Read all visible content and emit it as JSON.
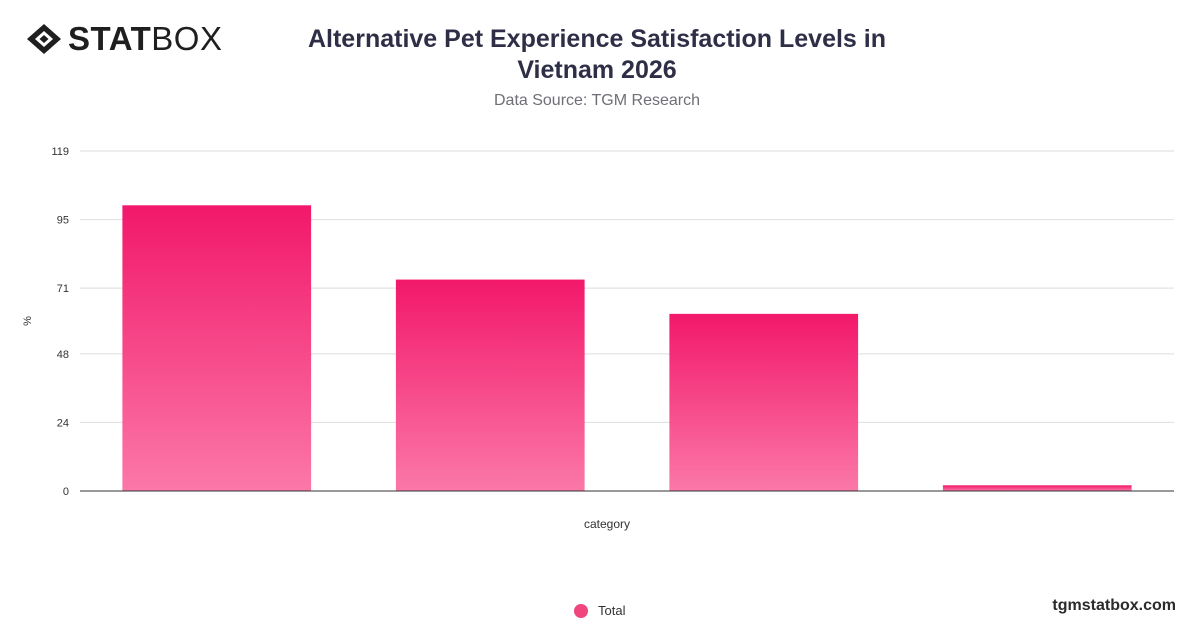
{
  "brand": {
    "bold": "STAT",
    "light": "BOX"
  },
  "header": {
    "title": "Alternative Pet Experience Satisfaction Levels in Vietnam 2026",
    "subtitle": "Data Source: TGM Research"
  },
  "footer": {
    "site": "tgmstatbox.com"
  },
  "colors": {
    "bar_top": "#f2186a",
    "bar_bottom": "#fb78a8",
    "grid": "#dedede",
    "axis": "#333333"
  },
  "chart_data": {
    "type": "bar",
    "categories": [
      "",
      "",
      "",
      ""
    ],
    "series": [
      {
        "name": "Total",
        "values": [
          100,
          74,
          62,
          2
        ]
      }
    ],
    "xlabel": "category",
    "ylabel": "%",
    "ylim": [
      0,
      119
    ],
    "yticks": [
      0,
      24,
      48,
      71,
      95,
      119
    ],
    "grid": true,
    "legend": "bottom-center"
  }
}
